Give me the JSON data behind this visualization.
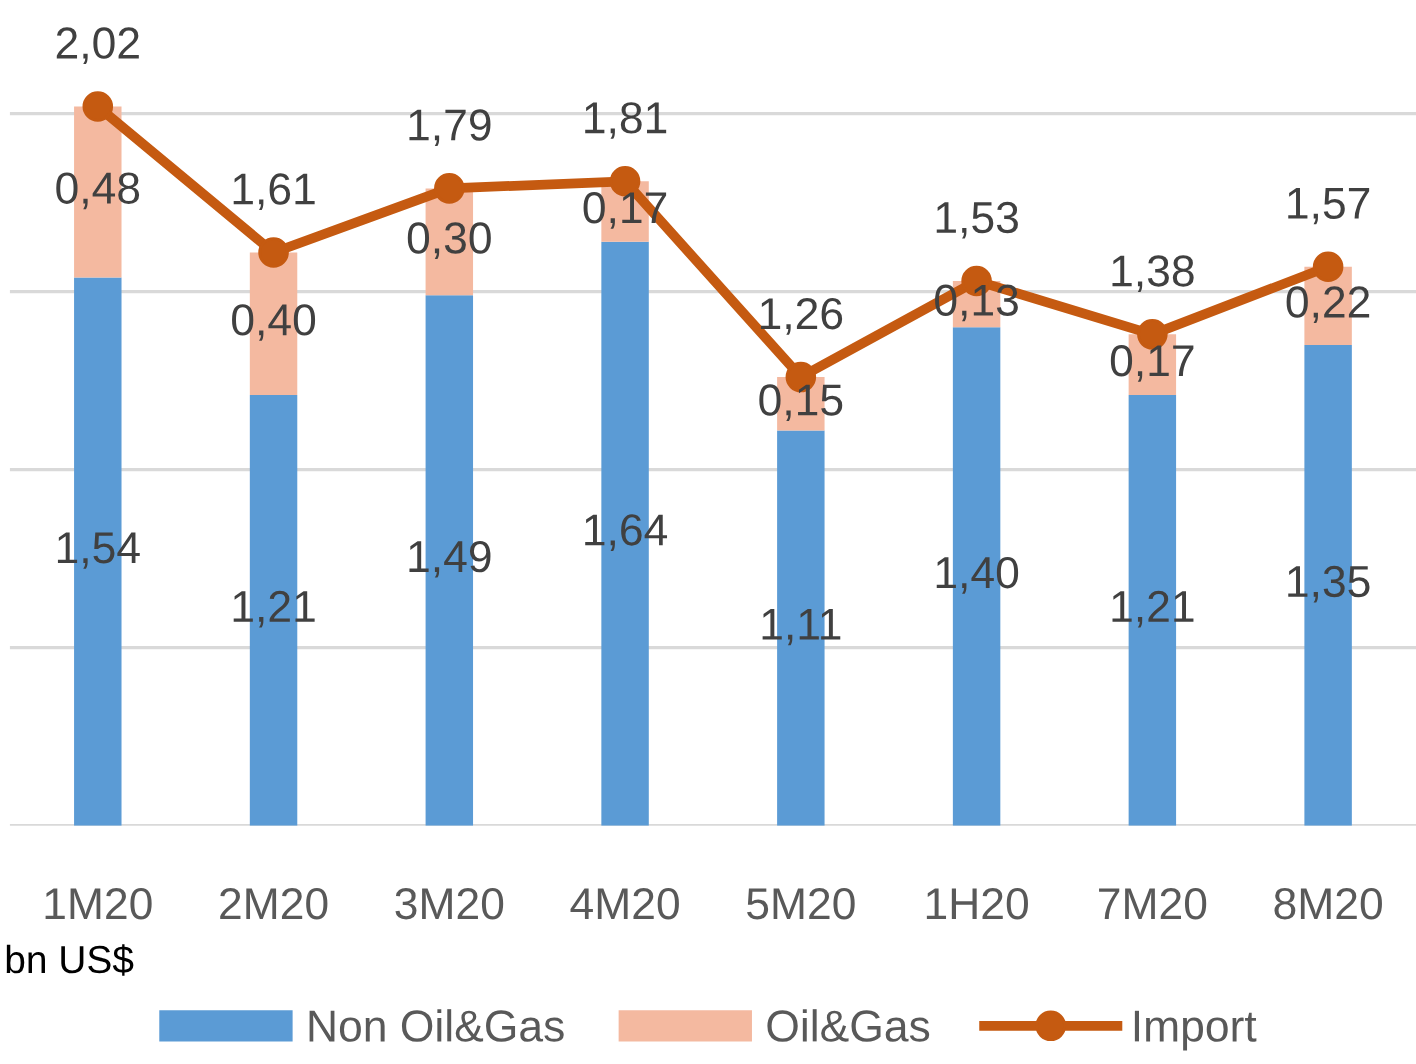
{
  "chart_data": {
    "type": "bar",
    "stacked": true,
    "categories": [
      "1M20",
      "2M20",
      "3M20",
      "4M20",
      "5M20",
      "1H20",
      "7M20",
      "8M20"
    ],
    "series": [
      {
        "name": "Non Oil&Gas",
        "type": "bar",
        "color": "#5b9bd5",
        "values": [
          1.54,
          1.21,
          1.49,
          1.64,
          1.11,
          1.4,
          1.21,
          1.35
        ],
        "value_labels": [
          "1,54",
          "1,21",
          "1,49",
          "1,64",
          "1,11",
          "1,40",
          "1,21",
          "1,35"
        ]
      },
      {
        "name": "Oil&Gas",
        "type": "bar",
        "color": "#f4b9a0",
        "values": [
          0.48,
          0.4,
          0.3,
          0.17,
          0.15,
          0.13,
          0.17,
          0.22
        ],
        "value_labels": [
          "0,48",
          "0,40",
          "0,30",
          "0,17",
          "0,15",
          "0,13",
          "0,17",
          "0,22"
        ]
      },
      {
        "name": "Import",
        "type": "line",
        "color": "#c55a11",
        "marker": "circle",
        "values": [
          2.02,
          1.61,
          1.79,
          1.81,
          1.26,
          1.53,
          1.38,
          1.57
        ],
        "value_labels": [
          "2,02",
          "1,61",
          "1,79",
          "1,81",
          "1,26",
          "1,53",
          "1,38",
          "1,57"
        ]
      }
    ],
    "relative": false,
    "yticks": [
      {
        "value": 0,
        "label": null
      },
      {
        "value": 0.5,
        "label": null
      },
      {
        "value": 1,
        "label": null
      },
      {
        "value": 1.5,
        "label": null
      },
      {
        "value": 2,
        "label": null
      }
    ],
    "grid": "y",
    "legend": "bottom",
    "annotations": [
      "bn US$"
    ]
  }
}
